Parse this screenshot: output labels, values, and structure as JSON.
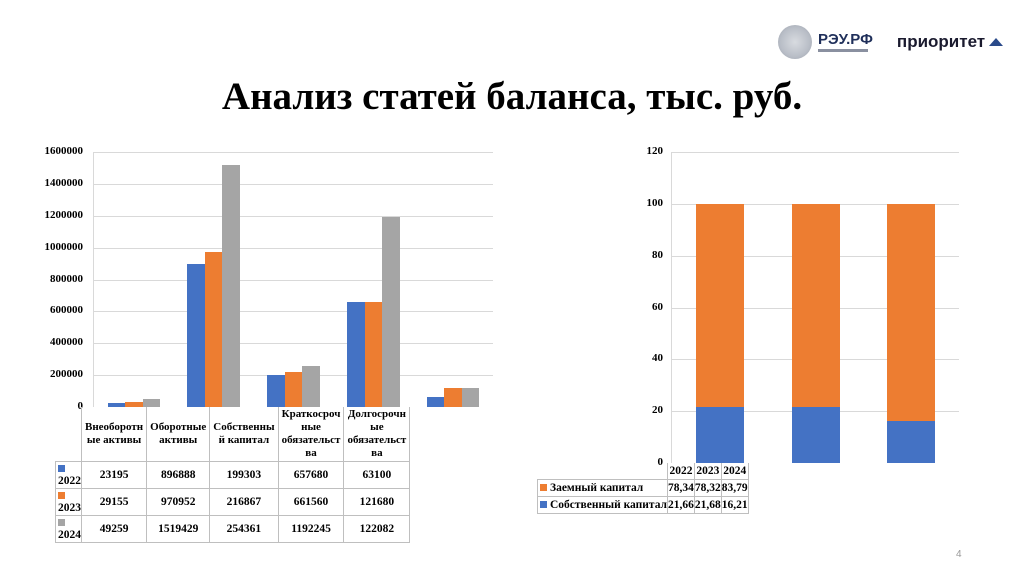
{
  "title": "Анализ статей баланса, тыс. руб.",
  "logos": {
    "rzu": "РЭУ.РФ",
    "priority": "приоритет"
  },
  "page_number": "4",
  "colors": {
    "2022": "#4472C4",
    "2023": "#ED7D31",
    "2024": "#A5A5A5",
    "grid": "#D9D9D9"
  },
  "chart_data": [
    {
      "type": "bar",
      "title": "",
      "categories": [
        "Внеоборотные активы",
        "Оборотные активы",
        "Собственный капитал",
        "Краткосрочные обязательства",
        "Долгосрочные обязательства"
      ],
      "category_labels": [
        "Внеоборотн ые активы",
        "Оборотные активы",
        "Собственны й капитал",
        "Краткосроч ные обязательст ва",
        "Долгосрочн ые обязательст ва"
      ],
      "series": [
        {
          "name": "2022",
          "color": "#4472C4",
          "values": [
            23195,
            896888,
            199303,
            657680,
            63100
          ]
        },
        {
          "name": "2023",
          "color": "#ED7D31",
          "values": [
            29155,
            970952,
            216867,
            661560,
            121680
          ]
        },
        {
          "name": "2024",
          "color": "#A5A5A5",
          "values": [
            49259,
            1519429,
            254361,
            1192245,
            122082
          ]
        }
      ],
      "yticks": [
        "0",
        "200000",
        "400000",
        "600000",
        "800000",
        "1000000",
        "1200000",
        "1400000",
        "1600000"
      ],
      "ylim": [
        0,
        1600000
      ],
      "grid": true,
      "legend": "data-table",
      "xlabel": "",
      "ylabel": ""
    },
    {
      "type": "bar",
      "stacked": true,
      "title": "",
      "categories": [
        "2022",
        "2023",
        "2024"
      ],
      "series": [
        {
          "name": "Заемный капитал",
          "color": "#ED7D31",
          "values": [
            78.34,
            78.32,
            83.79
          ],
          "labels": [
            "78,34",
            "78,32",
            "83,79"
          ]
        },
        {
          "name": "Собственный капитал",
          "color": "#4472C4",
          "values": [
            21.66,
            21.68,
            16.21
          ],
          "labels": [
            "21,66",
            "21,68",
            "16,21"
          ]
        }
      ],
      "yticks": [
        "0",
        "20",
        "40",
        "60",
        "80",
        "100",
        "120"
      ],
      "ylim": [
        0,
        120
      ],
      "grid": true,
      "legend": "data-table",
      "xlabel": "",
      "ylabel": ""
    }
  ]
}
